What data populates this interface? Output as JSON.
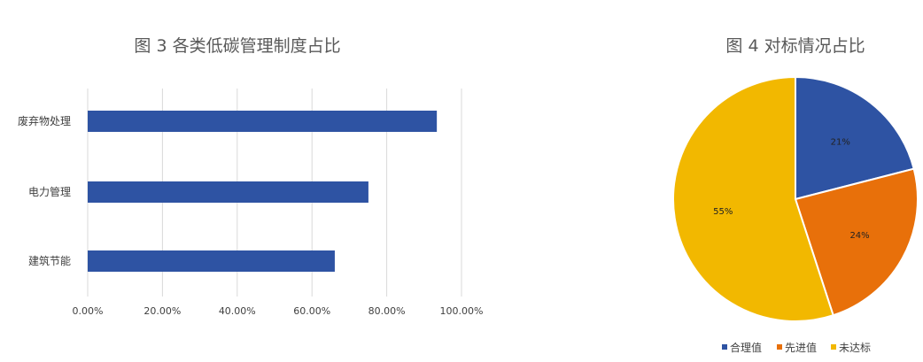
{
  "chart_data": [
    {
      "type": "bar",
      "orientation": "horizontal",
      "title": "图 3  各类低碳管理制度占比",
      "categories": [
        "废弃物处理",
        "电力管理",
        "建筑节能"
      ],
      "values": [
        0.934,
        0.751,
        0.661
      ],
      "xlim": [
        0,
        1
      ],
      "xticks": [
        "0.00%",
        "20.00%",
        "40.00%",
        "60.00%",
        "80.00%",
        "100.00%"
      ],
      "grid": true,
      "color": "#2E53A3"
    },
    {
      "type": "pie",
      "title": "图 4  对标情况占比",
      "labels": [
        "合理值",
        "先进值",
        "未达标"
      ],
      "values": [
        21,
        24,
        55
      ],
      "data_labels": [
        "21%",
        "24%",
        "55%"
      ],
      "colors": [
        "#2E53A3",
        "#E8700A",
        "#F2B800"
      ],
      "legend": "bottom"
    }
  ]
}
